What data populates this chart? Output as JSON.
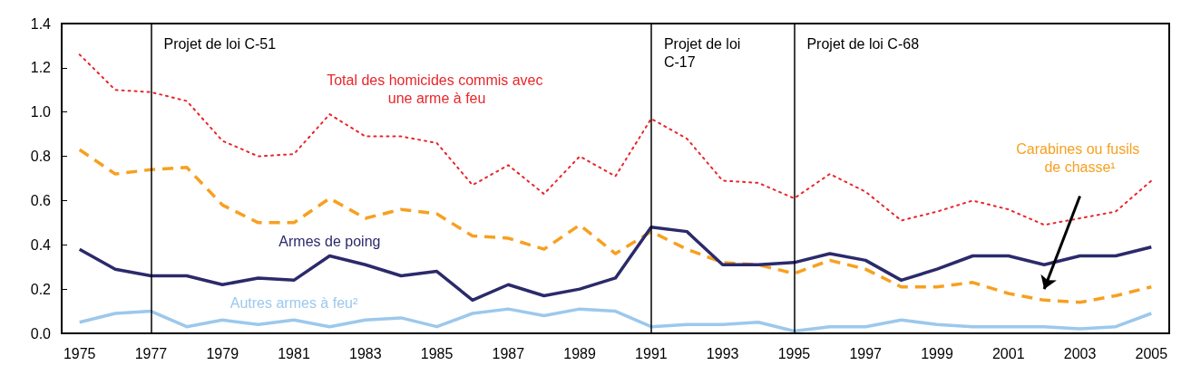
{
  "chart_data": {
    "type": "line",
    "categories": [
      "1975",
      null,
      "1977",
      null,
      "1979",
      null,
      "1981",
      null,
      "1983",
      null,
      "1985",
      null,
      "1987",
      null,
      "1989",
      null,
      "1991",
      null,
      "1993",
      null,
      "1995",
      null,
      "1997",
      null,
      "1999",
      null,
      "2001",
      null,
      "2003",
      null,
      "2005"
    ],
    "series": [
      {
        "name": "Total des homicides commis avec une arme à feu",
        "color": "#e8262b",
        "line_style": "dotted",
        "values": [
          1.26,
          1.1,
          1.09,
          1.05,
          0.87,
          0.8,
          0.81,
          0.99,
          0.89,
          0.89,
          0.86,
          0.67,
          0.76,
          0.63,
          0.8,
          0.71,
          0.97,
          0.88,
          0.69,
          0.68,
          0.61,
          0.72,
          0.64,
          0.51,
          0.55,
          0.6,
          0.56,
          0.49,
          0.52,
          0.55,
          0.69
        ]
      },
      {
        "name": "Carabines ou fusils de chasse¹",
        "color": "#f7a020",
        "line_style": "dashed",
        "values": [
          0.83,
          0.72,
          0.74,
          0.75,
          0.58,
          0.5,
          0.5,
          0.61,
          0.52,
          0.56,
          0.54,
          0.44,
          0.43,
          0.38,
          0.49,
          0.36,
          0.46,
          0.38,
          0.32,
          0.31,
          0.27,
          0.33,
          0.29,
          0.21,
          0.21,
          0.23,
          0.18,
          0.15,
          0.14,
          0.17,
          0.21
        ]
      },
      {
        "name": "Armes de poing",
        "color": "#2b2a6b",
        "line_style": "solid",
        "values": [
          0.38,
          0.29,
          0.26,
          0.26,
          0.22,
          0.25,
          0.24,
          0.35,
          0.31,
          0.26,
          0.28,
          0.15,
          0.22,
          0.17,
          0.2,
          0.25,
          0.48,
          0.46,
          0.31,
          0.31,
          0.32,
          0.36,
          0.33,
          0.24,
          0.29,
          0.35,
          0.35,
          0.31,
          0.35,
          0.35,
          0.39
        ]
      },
      {
        "name": "Autres armes à feu²",
        "color": "#9cc8ec",
        "line_style": "solid",
        "values": [
          0.05,
          0.09,
          0.1,
          0.03,
          0.06,
          0.04,
          0.06,
          0.03,
          0.06,
          0.07,
          0.03,
          0.09,
          0.11,
          0.08,
          0.11,
          0.1,
          0.03,
          0.04,
          0.04,
          0.05,
          0.01,
          0.03,
          0.03,
          0.06,
          0.04,
          0.03,
          0.03,
          0.03,
          0.02,
          0.03,
          0.09
        ]
      }
    ],
    "ylim": [
      0,
      1.4
    ],
    "yticks": [
      {
        "value": 0,
        "label": "0.0"
      },
      0.2,
      0.4,
      0.6,
      0.8,
      {
        "value": 1,
        "label": "1.0"
      },
      1.2,
      1.4
    ],
    "ref_lines": [
      {
        "axis": "x",
        "value": "1977",
        "label": "Projet de loi C-51",
        "color": "#000000"
      },
      {
        "axis": "x",
        "value": "1991",
        "label": "Projet de loi C-17",
        "color": "#000000"
      },
      {
        "axis": "x",
        "value": "1995",
        "label": "Projet de loi C-68",
        "color": "#000000"
      }
    ],
    "marker": "none",
    "grid": false,
    "legend": false
  }
}
